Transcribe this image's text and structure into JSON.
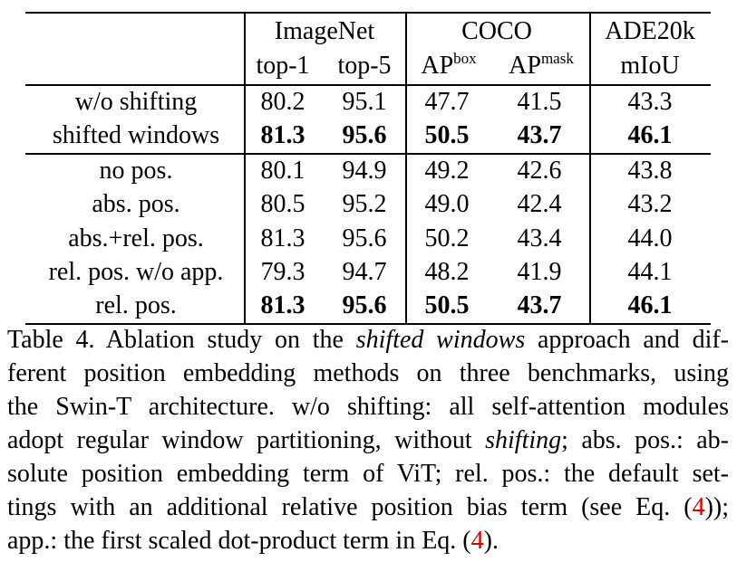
{
  "header": {
    "group_imagenet": "ImageNet",
    "group_coco": "COCO",
    "group_ade": "ADE20k",
    "col_top1": "top-1",
    "col_top5": "top-5",
    "col_apbox_base": "AP",
    "col_apbox_sup": "box",
    "col_apmask_base": "AP",
    "col_apmask_sup": "mask",
    "col_miou": "mIoU"
  },
  "rows": [
    {
      "label": "w/o shifting",
      "top1": "80.2",
      "top5": "95.1",
      "apbox": "47.7",
      "apmask": "41.5",
      "miou": "43.3",
      "bold": false
    },
    {
      "label": "shifted windows",
      "top1": "81.3",
      "top5": "95.6",
      "apbox": "50.5",
      "apmask": "43.7",
      "miou": "46.1",
      "bold": true
    },
    {
      "label": "no pos.",
      "top1": "80.1",
      "top5": "94.9",
      "apbox": "49.2",
      "apmask": "42.6",
      "miou": "43.8",
      "bold": false
    },
    {
      "label": "abs. pos.",
      "top1": "80.5",
      "top5": "95.2",
      "apbox": "49.0",
      "apmask": "42.4",
      "miou": "43.2",
      "bold": false
    },
    {
      "label": "abs.+rel. pos.",
      "top1": "81.3",
      "top5": "95.6",
      "apbox": "50.2",
      "apmask": "43.4",
      "miou": "44.0",
      "bold": false
    },
    {
      "label": "rel. pos. w/o app.",
      "top1": "79.3",
      "top5": "94.7",
      "apbox": "48.2",
      "apmask": "41.9",
      "miou": "44.1",
      "bold": false
    },
    {
      "label": "rel. pos.",
      "top1": "81.3",
      "top5": "95.6",
      "apbox": "50.5",
      "apmask": "43.7",
      "miou": "46.1",
      "bold": true
    }
  ],
  "caption": {
    "l1a": "Table 4. Ablation study on the ",
    "l1b": "shifted windows",
    "l1c": " approach and dif-",
    "l2": "ferent position embedding methods on three benchmarks, using",
    "l3": "the Swin-T architecture.  w/o shifting: all self-attention modules",
    "l4a": "adopt regular window partitioning, without ",
    "l4b": "shifting",
    "l4c": "; abs. pos.: ab-",
    "l5": "solute position embedding term of ViT; rel. pos.: the default set-",
    "l6a": "tings with an additional relative position bias term (see Eq. (",
    "l6ref": "4",
    "l6b": "));",
    "l7a": "app.: the first scaled dot-product term in Eq. (",
    "l7ref": "4",
    "l7b": ")."
  }
}
